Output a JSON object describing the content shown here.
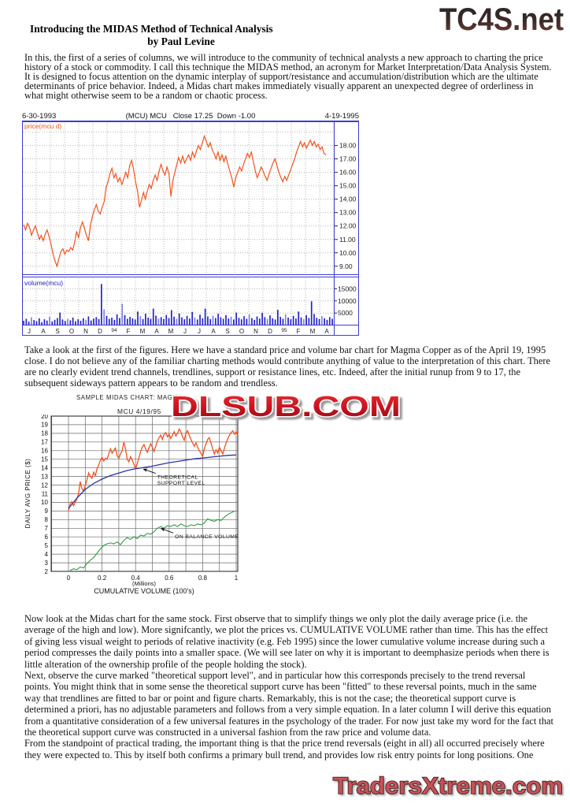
{
  "article": {
    "title": "Introducing the MIDAS Method of Technical Analysis",
    "byline": "by Paul Levine"
  },
  "branding": {
    "top_logo": "TC4S.net",
    "bottom_logo": "TradersXtreme.com",
    "watermark": "DLSUB.COM"
  },
  "paragraphs": {
    "intro": "In this, the first of a series of columns, we will introduce to the community of technical analysts a new approach to charting the price history of a stock or commodity. I call this technique the MIDAS method, an acronym for Market Interpretation/Data Analysis System. It is designed to focus attention on the dynamic interplay of support/resistance and accumulation/distribution which are the ultimate determinants of price behavior. Indeed, a Midas chart makes immediately visually apparent an unexpected degree of orderliness in what might otherwise seem to be a random or chaotic process.",
    "take_a_look": "Take a look at the first of the figures. Here we have a standard price and volume bar chart for Magma Copper as of the April 19, 1995 close. I do not believe any of the familiar charting methods would contribute anything of value to the interpretation of this chart. There are no clearly evident trend channels, trendlines, support or resistance lines, etc. Indeed, after the initial runup from 9 to 17, the subsequent sideways pattern appears to be random and trendless.",
    "now_look": "Now look at the Midas chart for the same stock. First observe that to simplify things we only plot the daily average price (i.e. the average of the high and low). More signifcantly, we plot the prices vs. CUMULATIVE VOLUME rather than time. This has the effect of giving less visual weight to periods of relative inactivity (e.g. Feb 1995) since the lower cumulative volume increase during such a period compresses the daily points into a smaller space. (We will see later on why it is important to deemphasize periods when there is little alteration of the ownership profile of the people holding the stock).",
    "next_observe": "Next, observe the curve marked \"theoretical support level\", and in particular how this corresponds precisely to the trend reversal points. You might think that in some sense the theoretical support curve has been \"fitted\" to these reversal points, much in the same way that trendlines are fitted to bar or point and figure charts. Remarkably, this is not the case; the theoretical support curve is determined a priori, has no adjustable parameters and follows from a very simple equation. In a later column I will derive this equation from a quantitative consideration of a few universal features in the psychology of the trader. For now just take my word for the fact that the theoretical support curve was constructed in a universal fashion from the raw price and volume data.",
    "standpoint": "From the standpoint of practical trading, the important thing is that the price trend reversals (eight in all) all occurred precisely where they were expected to. This by itself both confirms a primary bull trend, and provides low risk entry points for long positions. One"
  },
  "colors": {
    "price_line": "#f4521c",
    "volume_bar": "#2424c6",
    "frame_blue": "#3c3cd2",
    "support_line": "#2b35a8",
    "obv_line": "#2f9a44",
    "watermark_red": "#cf1420",
    "bottom_logo_red": "#c85156"
  },
  "chart_data": [
    {
      "type": "line+bar",
      "date_start": "6-30-1993",
      "symbol_info": "(MCU) MCU   Close 17.25  Down -1.00",
      "date_end": "4-19-1995",
      "price_pane_label": "price(mcu d)",
      "volume_pane_label": "volume(mcu)",
      "price_ticks": [
        "18.00",
        "17.00",
        "16.00",
        "15.00",
        "14.00",
        "13.00",
        "12.00",
        "11.00",
        "10.00",
        "9.00"
      ],
      "volume_ticks": [
        "15000",
        "10000",
        "5000"
      ],
      "month_labels": [
        "J",
        "A",
        "S",
        "O",
        "N",
        "D",
        "94",
        "F",
        "M",
        "A",
        "M",
        "J",
        "J",
        "A",
        "S",
        "O",
        "N",
        "D",
        "95",
        "F",
        "M",
        "A"
      ],
      "price_ylim": [
        8.4,
        19.8
      ],
      "volume_max": 17000,
      "price_x_extent": 0.97,
      "price_series": [
        12.1,
        11.7,
        12.2,
        11.9,
        11.3,
        11.7,
        12.0,
        11.5,
        11.0,
        11.3,
        10.9,
        11.4,
        11.7,
        11.2,
        10.6,
        9.9,
        9.4,
        9.0,
        9.6,
        10.1,
        10.3,
        9.9,
        10.2,
        10.1,
        10.4,
        10.2,
        10.8,
        11.6,
        11.1,
        11.9,
        12.3,
        11.8,
        11.3,
        10.9,
        12.0,
        12.7,
        13.2,
        13.6,
        13.1,
        12.9,
        13.4,
        13.8,
        14.9,
        15.3,
        15.9,
        16.3,
        15.6,
        15.9,
        15.3,
        15.6,
        15.1,
        15.5,
        16.0,
        15.6,
        16.5,
        16.9,
        16.2,
        15.3,
        14.6,
        13.4,
        13.9,
        14.5,
        14.0,
        14.6,
        15.1,
        14.8,
        15.4,
        15.8,
        15.4,
        16.1,
        16.6,
        16.1,
        15.8,
        16.4,
        15.9,
        14.2,
        15.4,
        16.0,
        16.6,
        17.1,
        16.7,
        17.2,
        16.7,
        17.0,
        17.3,
        16.9,
        17.5,
        17.1,
        17.6,
        18.0,
        17.7,
        18.2,
        18.7,
        18.3,
        17.9,
        18.2,
        17.7,
        17.4,
        17.0,
        17.5,
        16.9,
        17.3,
        16.8,
        17.2,
        16.6,
        16.1,
        15.6,
        14.9,
        15.6,
        16.0,
        16.4,
        16.1,
        16.6,
        17.0,
        17.4,
        17.1,
        17.5,
        16.8,
        16.1,
        15.6,
        16.0,
        16.4,
        16.1,
        15.7,
        15.4,
        15.9,
        16.3,
        16.7,
        17.0,
        16.5,
        16.0,
        15.6,
        15.3,
        15.7,
        15.4,
        15.8,
        16.2,
        16.6,
        17.0,
        17.5,
        17.9,
        18.3,
        17.9,
        18.2,
        17.8,
        18.1,
        18.4,
        18.0,
        18.3,
        17.9,
        18.1,
        17.7,
        17.9,
        17.4,
        17.3
      ],
      "volume_series": [
        1800,
        2600,
        1400,
        3200,
        2100,
        1600,
        2800,
        1200,
        2400,
        1900,
        3400,
        1500,
        2200,
        2900,
        5200,
        2300,
        1700,
        2600,
        2000,
        3100,
        1600,
        2400,
        1800,
        2800,
        2200,
        3600,
        1900,
        2700,
        3300,
        2500,
        17000,
        6500,
        3800,
        2600,
        3100,
        2200,
        4400,
        2900,
        8800,
        4100,
        2600,
        3400,
        2800,
        2300,
        5600,
        3700,
        2500,
        4700,
        3100,
        2600,
        6800,
        3900,
        2700,
        3300,
        2500,
        4200,
        2900,
        6200,
        3500,
        2600,
        4800,
        3200,
        2400,
        3800,
        2700,
        5400,
        3100,
        2300,
        4300,
        2800,
        6800,
        3600,
        2500,
        3900,
        2900,
        4700,
        3200,
        2600,
        4100,
        2700,
        3500,
        2300,
        5200,
        3000,
        2400,
        3700,
        2600,
        4400,
        2900,
        2200,
        3600,
        2700,
        5100,
        3300,
        2500,
        4000,
        2800,
        2300,
        6300,
        3400,
        2600,
        4500,
        3100,
        2400,
        3800,
        2700,
        5600,
        3200,
        2500,
        4100,
        2900,
        9800,
        4600,
        3000,
        2500,
        3700,
        2800,
        2200,
        3300,
        2600
      ]
    },
    {
      "type": "line",
      "title": "SAMPLE MIDAS CHART: MAGMA",
      "subtitle": "MCU   4/19/95",
      "ylabel": "DAILY AVG PRICE ($)",
      "xlabel_millions": "(Millions)",
      "xlabel": "CUMULATIVE VOLUME (100's)",
      "xlim": [
        -0.1,
        1.01
      ],
      "ylim": [
        2,
        20
      ],
      "x_ticks": [
        0,
        0.2,
        0.4,
        0.6,
        0.8,
        1
      ],
      "series": [
        {
          "name": "daily-avg-price",
          "color": "#f4521c",
          "width": 1.3,
          "x0": 0,
          "dx": 0.01,
          "values": [
            9.0,
            9.8,
            10.1,
            9.6,
            10.0,
            10.4,
            11.0,
            12.4,
            11.6,
            11.3,
            12.0,
            12.6,
            13.4,
            13.0,
            12.8,
            13.5,
            13.1,
            13.9,
            14.3,
            14.9,
            15.2,
            14.8,
            15.1,
            15.0,
            15.6,
            16.2,
            15.7,
            16.0,
            16.3,
            15.4,
            15.1,
            15.6,
            16.0,
            17.0,
            16.2,
            15.0,
            14.7,
            15.3,
            14.9,
            14.4,
            13.9,
            14.5,
            15.2,
            15.9,
            16.4,
            16.7,
            16.2,
            15.8,
            16.3,
            16.8,
            16.4,
            15.9,
            16.5,
            17.1,
            17.5,
            17.8,
            17.3,
            17.9,
            18.1,
            17.6,
            17.9,
            17.4,
            17.8,
            18.2,
            17.7,
            18.0,
            18.5,
            18.2,
            17.6,
            17.2,
            18.0,
            18.3,
            17.8,
            17.3,
            16.9,
            16.5,
            16.9,
            16.4,
            16.0,
            15.7,
            15.3,
            16.2,
            16.8,
            17.3,
            17.5,
            16.9,
            16.2,
            15.6,
            16.1,
            15.7,
            16.4,
            16.0,
            15.6,
            16.3,
            16.9,
            17.4,
            17.8,
            18.1,
            18.3,
            17.9,
            18.2,
            17.8
          ]
        },
        {
          "name": "theoretical-support",
          "color": "#2b35a8",
          "width": 1.3,
          "x0": 0,
          "dx": 0.05,
          "values": [
            9.3,
            10.5,
            11.5,
            12.2,
            12.7,
            13.1,
            13.4,
            13.7,
            13.9,
            14.05,
            14.2,
            14.4,
            14.6,
            14.75,
            14.9,
            15.05,
            15.15,
            15.25,
            15.35,
            15.45,
            15.5
          ]
        },
        {
          "name": "on-balance-volume",
          "color": "#2f9a44",
          "width": 1.1,
          "x0": 0.01,
          "dx": 0.02,
          "values": [
            2.1,
            2.3,
            2.2,
            2.5,
            2.4,
            2.9,
            3.3,
            3.6,
            4.1,
            4.6,
            5.0,
            5.2,
            5.3,
            5.2,
            5.4,
            5.1,
            5.6,
            5.9,
            5.7,
            6.0,
            5.8,
            6.2,
            6.1,
            6.4,
            6.3,
            6.6,
            7.0,
            7.2,
            7.0,
            7.3,
            7.2,
            7.4,
            7.2,
            7.5,
            7.3,
            7.2,
            7.4,
            7.3,
            7.5,
            7.4,
            7.6,
            8.1,
            7.9,
            7.8,
            8.0,
            7.9,
            8.3,
            8.6,
            8.8,
            9.0
          ]
        }
      ],
      "annotations": [
        {
          "lines": [
            "THEORETICAL",
            "SUPPORT LEVEL"
          ],
          "target_x": 0.44,
          "target_y": 14.0
        },
        {
          "lines": [
            "ON BALANCE VOLUME"
          ],
          "target_x": 0.545,
          "target_y": 7.1
        }
      ]
    }
  ]
}
